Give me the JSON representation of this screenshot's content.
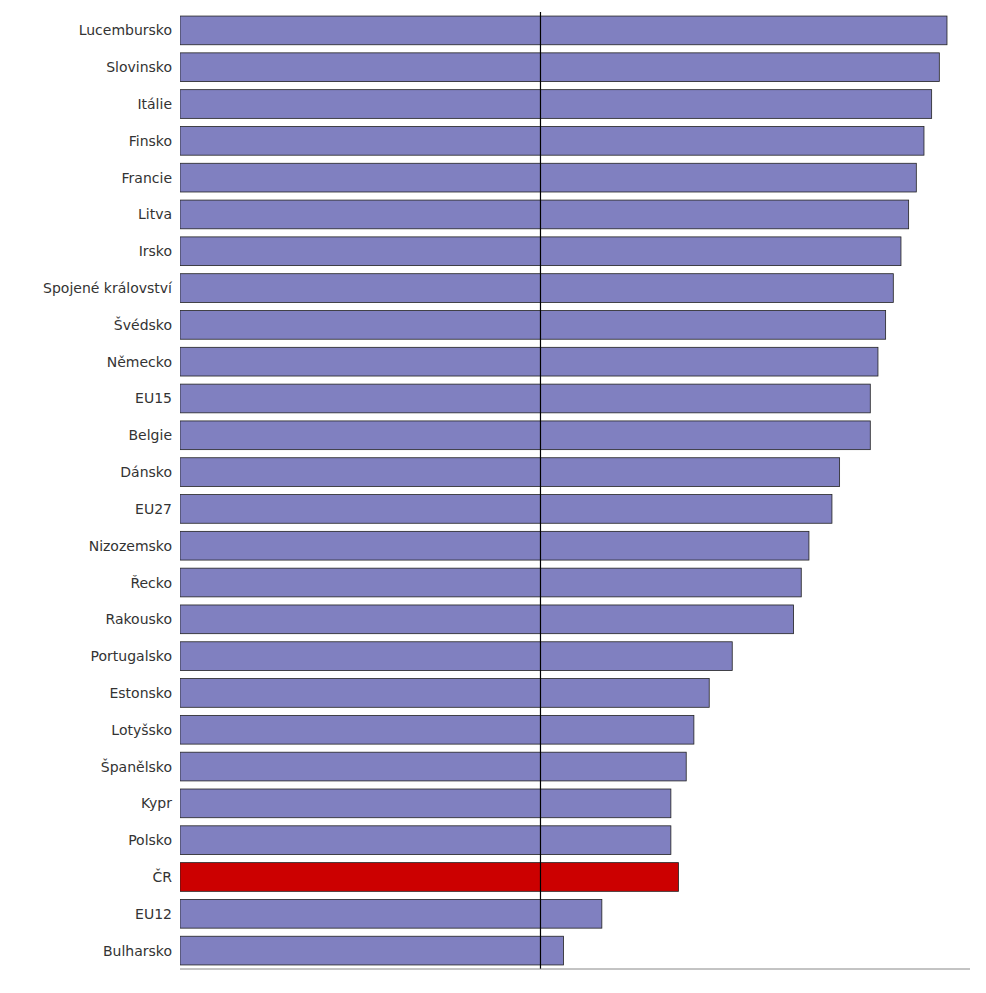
{
  "chart_data": {
    "type": "bar",
    "orientation": "horizontal",
    "categories": [
      "Lucembursko",
      "Slovinsko",
      "Itálie",
      "Finsko",
      "Francie",
      "Litva",
      "Irsko",
      "Spojené království",
      "Švédsko",
      "Německo",
      "EU15",
      "Belgie",
      "Dánsko",
      "EU27",
      "Nizozemsko",
      "Řecko",
      "Rakousko",
      "Portugalsko",
      "Estonsko",
      "Lotyšsko",
      "Španělsko",
      "Kypr",
      "Polsko",
      "ČR",
      "EU12",
      "Bulharsko"
    ],
    "values": [
      100,
      99,
      98,
      97,
      96,
      95,
      94,
      93,
      92,
      91,
      90,
      90,
      86,
      85,
      82,
      81,
      80,
      72,
      69,
      67,
      66,
      64,
      64,
      65,
      55,
      50
    ],
    "colors": [
      "#8080c0",
      "#8080c0",
      "#8080c0",
      "#8080c0",
      "#8080c0",
      "#8080c0",
      "#8080c0",
      "#8080c0",
      "#8080c0",
      "#8080c0",
      "#8080c0",
      "#8080c0",
      "#8080c0",
      "#8080c0",
      "#8080c0",
      "#8080c0",
      "#8080c0",
      "#8080c0",
      "#8080c0",
      "#8080c0",
      "#8080c0",
      "#8080c0",
      "#8080c0",
      "#cc0000",
      "#8080c0",
      "#8080c0"
    ],
    "xlim": [
      0,
      103
    ],
    "xticks": [],
    "vline": 47,
    "grid": false,
    "tick_labels": "y"
  }
}
